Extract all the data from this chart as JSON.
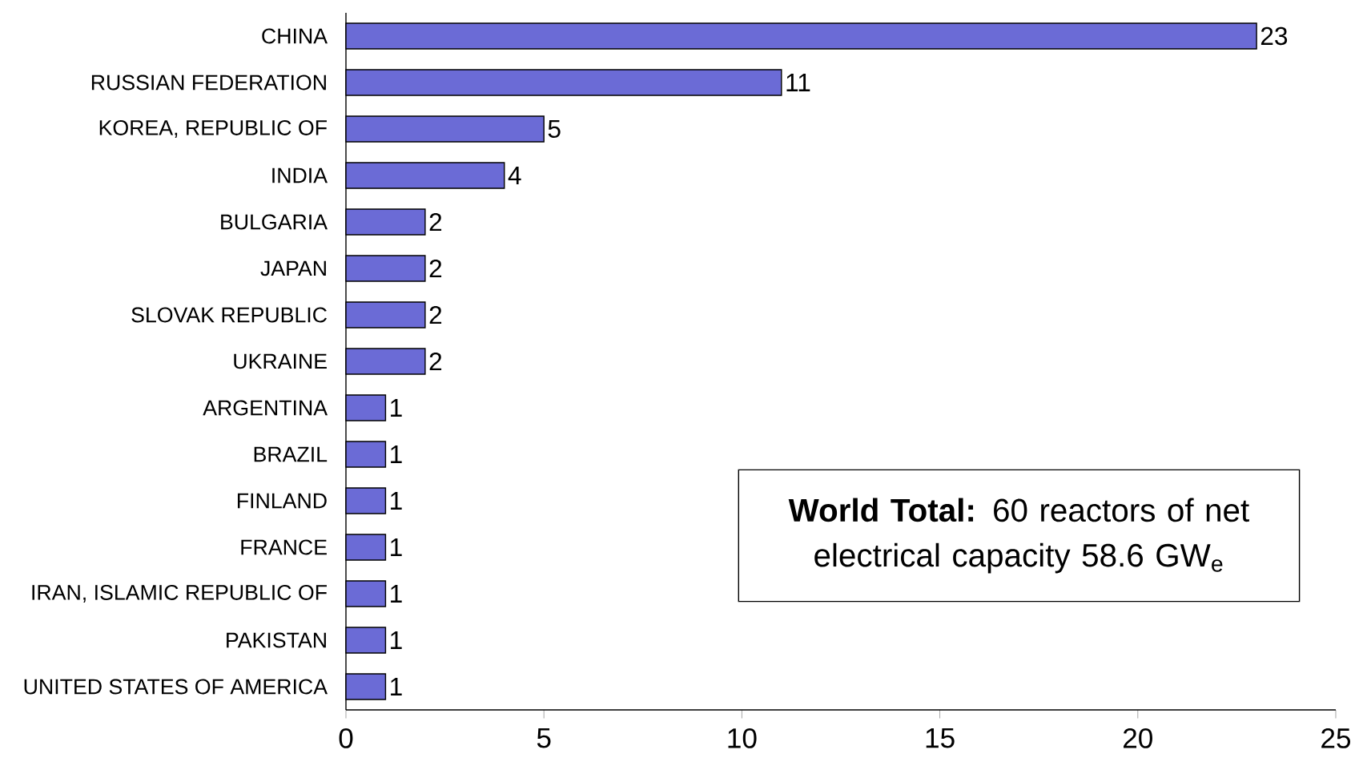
{
  "chart_data": {
    "type": "bar",
    "orientation": "horizontal",
    "categories": [
      "CHINA",
      "RUSSIAN FEDERATION",
      "KOREA, REPUBLIC OF",
      "INDIA",
      "BULGARIA",
      "JAPAN",
      "SLOVAK REPUBLIC",
      "UKRAINE",
      "ARGENTINA",
      "BRAZIL",
      "FINLAND",
      "FRANCE",
      "IRAN, ISLAMIC REPUBLIC OF",
      "PAKISTAN",
      "UNITED STATES OF AMERICA"
    ],
    "values": [
      23,
      11,
      5,
      4,
      2,
      2,
      2,
      2,
      1,
      1,
      1,
      1,
      1,
      1,
      1
    ],
    "color": "#6b6bd6",
    "xlim": [
      0,
      25
    ],
    "xticks": [
      0,
      5,
      10,
      15,
      20,
      25
    ],
    "data_labels": true,
    "grid": false,
    "annotations": [
      "**World Total:** 60 reactors of net electrical capacity 58.6 GW$_{e}$"
    ]
  }
}
